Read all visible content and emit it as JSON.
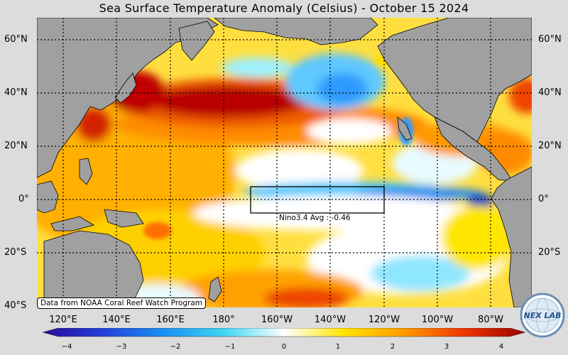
{
  "title": "Sea Surface Temperature Anomaly (Celsius) - October 15 2024",
  "lat_labels": [
    "60°N",
    "40°N",
    "20°N",
    "0°",
    "20°S",
    "40°S"
  ],
  "lon_labels": [
    "120°E",
    "140°E",
    "160°E",
    "180°",
    "160°W",
    "140°W",
    "120°W",
    "100°W",
    "80°W"
  ],
  "region_box": {
    "label": "Nino3.4 Avg : -0.46",
    "lon_range": [
      "170°W",
      "120°W"
    ],
    "lat_range": [
      "5°S",
      "5°N"
    ]
  },
  "credit": "Data from NOAA Coral Reef Watch Program",
  "colorbar": {
    "ticks": [
      "−4",
      "−3",
      "−2",
      "−1",
      "0",
      "1",
      "2",
      "3",
      "4"
    ],
    "range": [
      -4,
      4
    ],
    "colors": [
      "#2a0a9a",
      "#2340d8",
      "#1a8ff0",
      "#3fd6f2",
      "#ffffff",
      "#ffe400",
      "#ff9a00",
      "#ee3300",
      "#9a0000"
    ]
  },
  "logo": {
    "text": "NEX LAB",
    "icon": "nexlab-globe-logo"
  },
  "colors": {
    "land": "#a0a0a0",
    "background": "#dcdcdc",
    "warm": "#ff9a00",
    "hot": "#b80000",
    "cool": "#7fe4ff",
    "cold": "#1a8ff0"
  }
}
